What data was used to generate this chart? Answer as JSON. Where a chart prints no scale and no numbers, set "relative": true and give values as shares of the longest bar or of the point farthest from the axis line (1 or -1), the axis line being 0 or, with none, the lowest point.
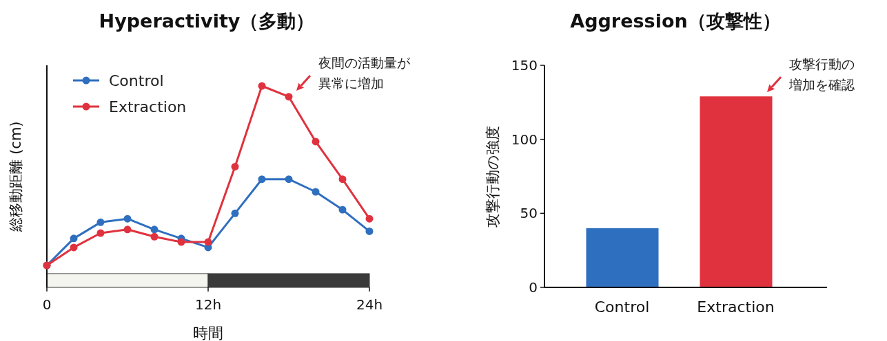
{
  "chart_data": [
    {
      "type": "line",
      "title": "Hyperactivity（多動）",
      "xlabel": "時間",
      "ylabel": "総移動距離 (cm)",
      "relative": true,
      "marker": "circle",
      "legend": "top left",
      "x": [
        0,
        2,
        4,
        6,
        8,
        10,
        12,
        14,
        16,
        18,
        20,
        22,
        24
      ],
      "xlim": [
        0,
        24
      ],
      "xticks": [
        0,
        {
          "value": 12,
          "label": "12h"
        },
        {
          "value": 24,
          "label": "24h"
        }
      ],
      "series": [
        {
          "name": "Control",
          "color": "#2f6fbf",
          "values": [
            0,
            0.15,
            0.24,
            0.26,
            0.2,
            0.15,
            0.1,
            0.29,
            0.48,
            0.48,
            0.41,
            0.31,
            0.19
          ]
        },
        {
          "name": "Extraction",
          "color": "#e0323e",
          "values": [
            0,
            0.1,
            0.18,
            0.2,
            0.16,
            0.13,
            0.13,
            0.55,
            1,
            0.94,
            0.69,
            0.48,
            0.26
          ]
        }
      ],
      "annotations": [
        "夜間の活動量が",
        "異常に増加"
      ]
    },
    {
      "type": "bar",
      "title": "Aggression（攻撃性）",
      "ylabel": "攻撃行動の強度",
      "categories": [
        "Control",
        "Extraction"
      ],
      "values": [
        40,
        129
      ],
      "colors": [
        "#2f6fbf",
        "#e0323e"
      ],
      "ylim": [
        0,
        150
      ],
      "yticks": [
        0,
        50,
        100,
        150
      ],
      "annotations": [
        "攻撃行動の",
        "増加を確認"
      ]
    }
  ]
}
